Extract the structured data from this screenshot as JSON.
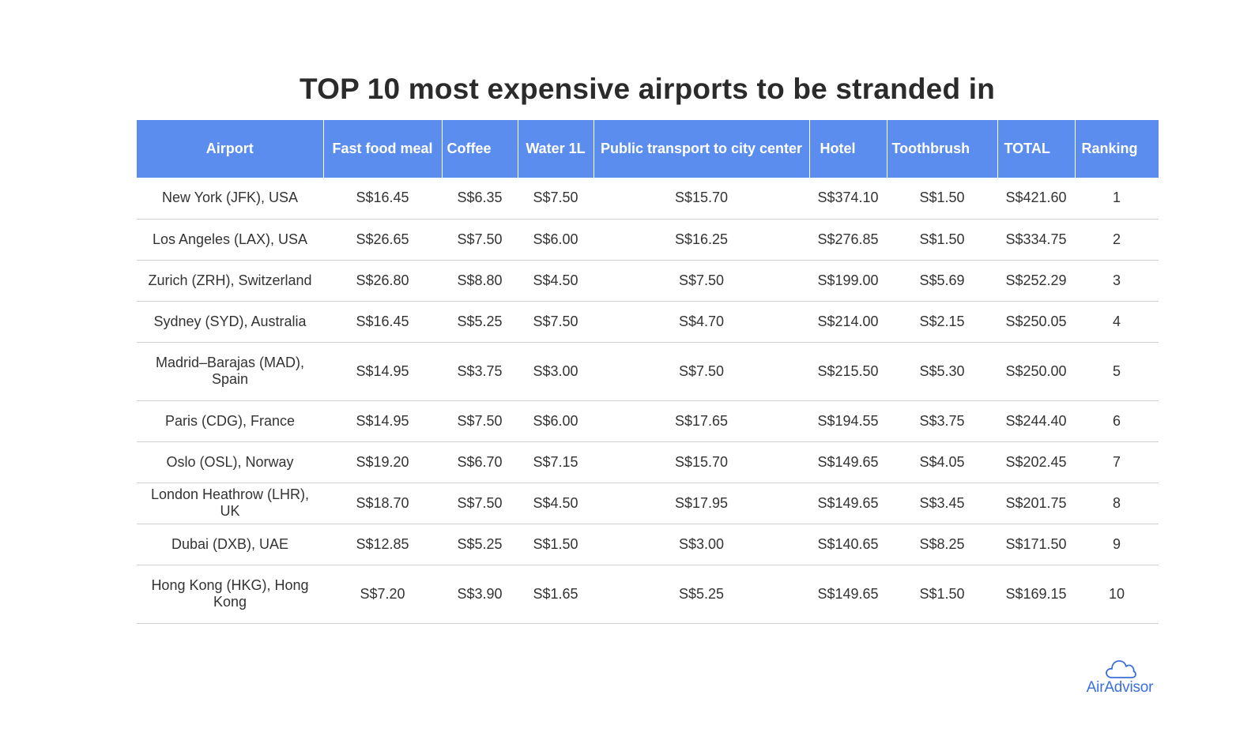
{
  "chart_data": {
    "type": "table",
    "title": "TOP 10 most expensive airports to be stranded in",
    "columns": [
      "Airport",
      "Fast food meal",
      "Coffee",
      "Water 1L",
      "Public transport to city center",
      "Hotel",
      "Toothbrush",
      "TOTAL",
      "Ranking"
    ],
    "rows": [
      [
        "New York (JFK), USA",
        "S$16.45",
        "S$6.35",
        "S$7.50",
        "S$15.70",
        "S$374.10",
        "S$1.50",
        "S$421.60",
        "1"
      ],
      [
        "Los Angeles (LAX), USA",
        "S$26.65",
        "S$7.50",
        "S$6.00",
        "S$16.25",
        "S$276.85",
        "S$1.50",
        "S$334.75",
        "2"
      ],
      [
        "Zurich (ZRH), Switzerland",
        "S$26.80",
        "S$8.80",
        "S$4.50",
        "S$7.50",
        "S$199.00",
        "S$5.69",
        "S$252.29",
        "3"
      ],
      [
        "Sydney (SYD), Australia",
        "S$16.45",
        "S$5.25",
        "S$7.50",
        "S$4.70",
        "S$214.00",
        "S$2.15",
        "S$250.05",
        "4"
      ],
      [
        "Madrid–Barajas (MAD), Spain",
        "S$14.95",
        "S$3.75",
        "S$3.00",
        "S$7.50",
        "S$215.50",
        "S$5.30",
        "S$250.00",
        "5"
      ],
      [
        "Paris (CDG), France",
        "S$14.95",
        "S$7.50",
        "S$6.00",
        "S$17.65",
        "S$194.55",
        "S$3.75",
        "S$244.40",
        "6"
      ],
      [
        "Oslo (OSL), Norway",
        "S$19.20",
        "S$6.70",
        "S$7.15",
        "S$15.70",
        "S$149.65",
        "S$4.05",
        "S$202.45",
        "7"
      ],
      [
        "London Heathrow (LHR), UK",
        "S$18.70",
        "S$7.50",
        "S$4.50",
        "S$17.95",
        "S$149.65",
        "S$3.45",
        "S$201.75",
        "8"
      ],
      [
        "Dubai (DXB), UAE",
        "S$12.85",
        "S$5.25",
        "S$1.50",
        "S$3.00",
        "S$140.65",
        "S$8.25",
        "S$171.50",
        "9"
      ],
      [
        "Hong Kong (HKG), Hong Kong",
        "S$7.20",
        "S$3.90",
        "S$1.65",
        "S$5.25",
        "S$149.65",
        "S$1.50",
        "S$169.15",
        "10"
      ]
    ]
  },
  "colors": {
    "header_bg": "#5b8def",
    "header_text": "#ffffff",
    "row_divider": "#cfcfcf",
    "brand": "#3a6fd8"
  },
  "branding": {
    "logo_text": "AirAdvisor",
    "logo_icon": "cloud-icon"
  }
}
